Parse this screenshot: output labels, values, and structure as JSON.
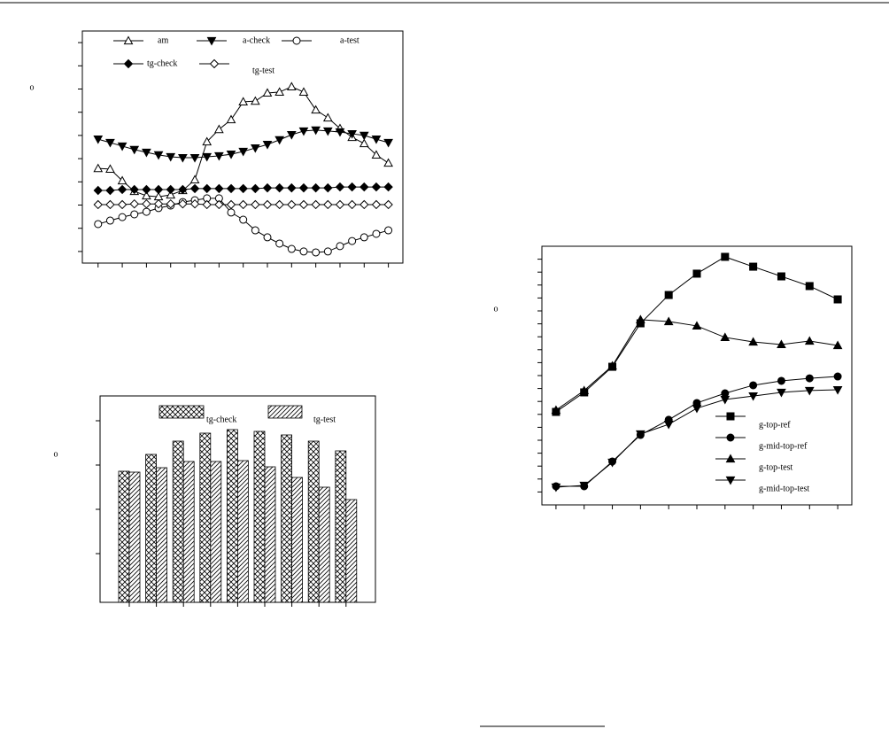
{
  "chart_data": [
    {
      "type": "line",
      "y_label": "o",
      "x": [
        0,
        1,
        2,
        3,
        4,
        5,
        6,
        7,
        8,
        9,
        10,
        11,
        12,
        13,
        14,
        15,
        16,
        17,
        18,
        19,
        20,
        21,
        22,
        23,
        24
      ],
      "xlim": [
        -1.3,
        25.2
      ],
      "xticks": [
        0,
        2,
        4,
        6,
        8,
        10,
        12,
        14,
        16,
        18,
        20,
        22,
        24
      ],
      "ylim": [
        0,
        10
      ],
      "yticks": [
        0.5,
        1.5,
        2.5,
        3.5,
        4.5,
        5.5,
        6.5,
        7.5,
        8.5,
        9.5
      ],
      "series": [
        {
          "name": "am",
          "color": "#000000",
          "marker": "triangle-up",
          "filled": false,
          "values": [
            4.08,
            4.05,
            3.55,
            3.09,
            2.9,
            2.86,
            2.94,
            3.13,
            3.59,
            5.23,
            5.76,
            6.18,
            6.95,
            6.98,
            7.33,
            7.37,
            7.6,
            7.37,
            6.6,
            6.26,
            5.8,
            5.42,
            5.15,
            4.66,
            4.31
          ]
        },
        {
          "name": "a-check",
          "color": "#000000",
          "marker": "triangle-down",
          "filled": true,
          "values": [
            5.34,
            5.19,
            5.04,
            4.89,
            4.77,
            4.66,
            4.58,
            4.54,
            4.54,
            4.58,
            4.62,
            4.69,
            4.81,
            4.96,
            5.11,
            5.31,
            5.53,
            5.69,
            5.73,
            5.69,
            5.65,
            5.57,
            5.5,
            5.34,
            5.19
          ]
        },
        {
          "name": "a-test",
          "color": "#000000",
          "marker": "circle",
          "filled": false,
          "values": [
            1.68,
            1.83,
            1.98,
            2.1,
            2.21,
            2.37,
            2.48,
            2.63,
            2.71,
            2.79,
            2.79,
            2.18,
            1.87,
            1.41,
            1.11,
            0.84,
            0.61,
            0.5,
            0.46,
            0.5,
            0.73,
            0.95,
            1.11,
            1.26,
            1.41
          ]
        },
        {
          "name": "tg-check",
          "color": "#000000",
          "marker": "diamond",
          "filled": true,
          "values": [
            3.13,
            3.13,
            3.17,
            3.17,
            3.17,
            3.17,
            3.17,
            3.17,
            3.21,
            3.21,
            3.21,
            3.21,
            3.21,
            3.21,
            3.24,
            3.24,
            3.24,
            3.24,
            3.24,
            3.24,
            3.28,
            3.28,
            3.28,
            3.28,
            3.28
          ]
        },
        {
          "name": "tg-test",
          "color": "#000000",
          "marker": "diamond",
          "filled": false,
          "values": [
            2.52,
            2.52,
            2.52,
            2.55,
            2.55,
            2.55,
            2.55,
            2.55,
            2.55,
            2.52,
            2.52,
            2.52,
            2.52,
            2.52,
            2.52,
            2.52,
            2.52,
            2.52,
            2.52,
            2.52,
            2.52,
            2.52,
            2.52,
            2.52,
            2.52
          ]
        }
      ]
    },
    {
      "type": "bar",
      "y_label": "o",
      "categories": [
        null,
        null,
        null,
        null,
        null,
        null,
        null,
        null,
        null
      ],
      "ylim": [
        0,
        4.66
      ],
      "yticks": [
        1.1,
        2.1,
        3.1,
        4.1
      ],
      "series": [
        {
          "name": "tg-check",
          "color": "#000000",
          "pattern": "crosshatch",
          "values": [
            2.96,
            3.34,
            3.64,
            3.82,
            3.9,
            3.86,
            3.78,
            3.64,
            3.42
          ]
        },
        {
          "name": "tg-test",
          "color": "#000000",
          "pattern": "diagonal",
          "values": [
            2.94,
            3.04,
            3.18,
            3.18,
            3.2,
            3.06,
            2.82,
            2.6,
            2.32
          ]
        }
      ]
    },
    {
      "type": "line",
      "y_label": "o",
      "x": [
        0,
        1,
        2,
        3,
        4,
        5,
        6,
        7,
        8,
        9,
        10
      ],
      "xlim": [
        -0.5,
        10.5
      ],
      "xticks": [
        0,
        1,
        2,
        3,
        4,
        5,
        6,
        7,
        8,
        9,
        10
      ],
      "ylim": [
        0,
        20
      ],
      "yticks": [
        1,
        2,
        3,
        4,
        5,
        6,
        7,
        8,
        9,
        10,
        11,
        12,
        13,
        14,
        15,
        16,
        17,
        18,
        19
      ],
      "series": [
        {
          "name": "g-top-ref",
          "color": "#000000",
          "marker": "square",
          "filled": true,
          "values": [
            7.19,
            8.7,
            10.68,
            14.04,
            16.23,
            17.88,
            19.18,
            18.42,
            17.67,
            16.92,
            15.89
          ]
        },
        {
          "name": "g-mid-top-ref",
          "color": "#000000",
          "marker": "circle",
          "filled": true,
          "values": [
            1.44,
            1.44,
            3.36,
            5.41,
            6.58,
            7.88,
            8.63,
            9.25,
            9.59,
            9.79,
            9.93
          ]
        },
        {
          "name": "g-top-test",
          "color": "#000000",
          "marker": "triangle-up",
          "filled": true,
          "values": [
            7.33,
            8.84,
            10.75,
            14.32,
            14.18,
            13.84,
            12.95,
            12.6,
            12.4,
            12.67,
            12.33
          ]
        },
        {
          "name": "g-mid-top-test",
          "color": "#000000",
          "marker": "triangle-down",
          "filled": true,
          "values": [
            1.37,
            1.51,
            3.29,
            5.48,
            6.23,
            7.47,
            8.15,
            8.42,
            8.7,
            8.84,
            8.9
          ]
        }
      ]
    }
  ]
}
